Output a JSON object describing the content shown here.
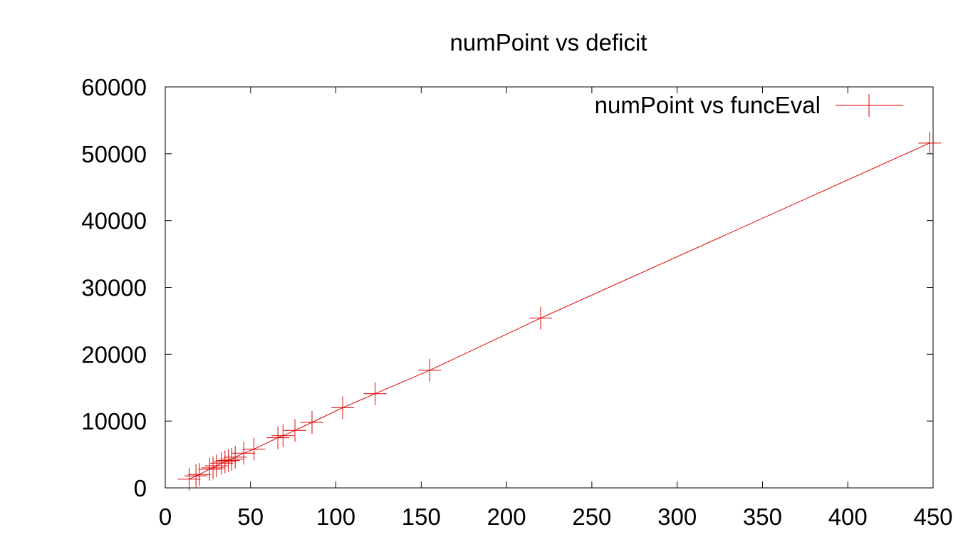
{
  "chart_data": {
    "type": "scatter",
    "title": "numPoint vs deficit",
    "xlabel": "",
    "ylabel": "",
    "xlim": [
      0,
      450
    ],
    "ylim": [
      0,
      60000
    ],
    "x_ticks": [
      0,
      50,
      100,
      150,
      200,
      250,
      300,
      350,
      400,
      450
    ],
    "y_ticks": [
      0,
      10000,
      20000,
      30000,
      40000,
      50000,
      60000
    ],
    "x_tick_labels": [
      "0",
      "50",
      "100",
      "150",
      "200",
      "250",
      "300",
      "350",
      "400",
      "450"
    ],
    "y_tick_labels": [
      "0",
      "10000",
      "20000",
      "30000",
      "40000",
      "50000",
      "60000"
    ],
    "grid": false,
    "legend_position": "top-right",
    "series": [
      {
        "name": "numPoint vs funcEval",
        "color": "#e00000",
        "marker": "plus",
        "line": true,
        "points": [
          [
            14,
            1300
          ],
          [
            18,
            1800
          ],
          [
            20,
            2000
          ],
          [
            26,
            2800
          ],
          [
            28,
            3000
          ],
          [
            30,
            3300
          ],
          [
            33,
            3700
          ],
          [
            35,
            3900
          ],
          [
            37,
            4100
          ],
          [
            39,
            4300
          ],
          [
            41,
            4600
          ],
          [
            46,
            5200
          ],
          [
            52,
            5800
          ],
          [
            66,
            7500
          ],
          [
            69,
            7800
          ],
          [
            76,
            8600
          ],
          [
            86,
            9800
          ],
          [
            104,
            12000
          ],
          [
            123,
            14100
          ],
          [
            155,
            17600
          ],
          [
            220,
            25400
          ],
          [
            448,
            51600
          ]
        ]
      }
    ]
  }
}
